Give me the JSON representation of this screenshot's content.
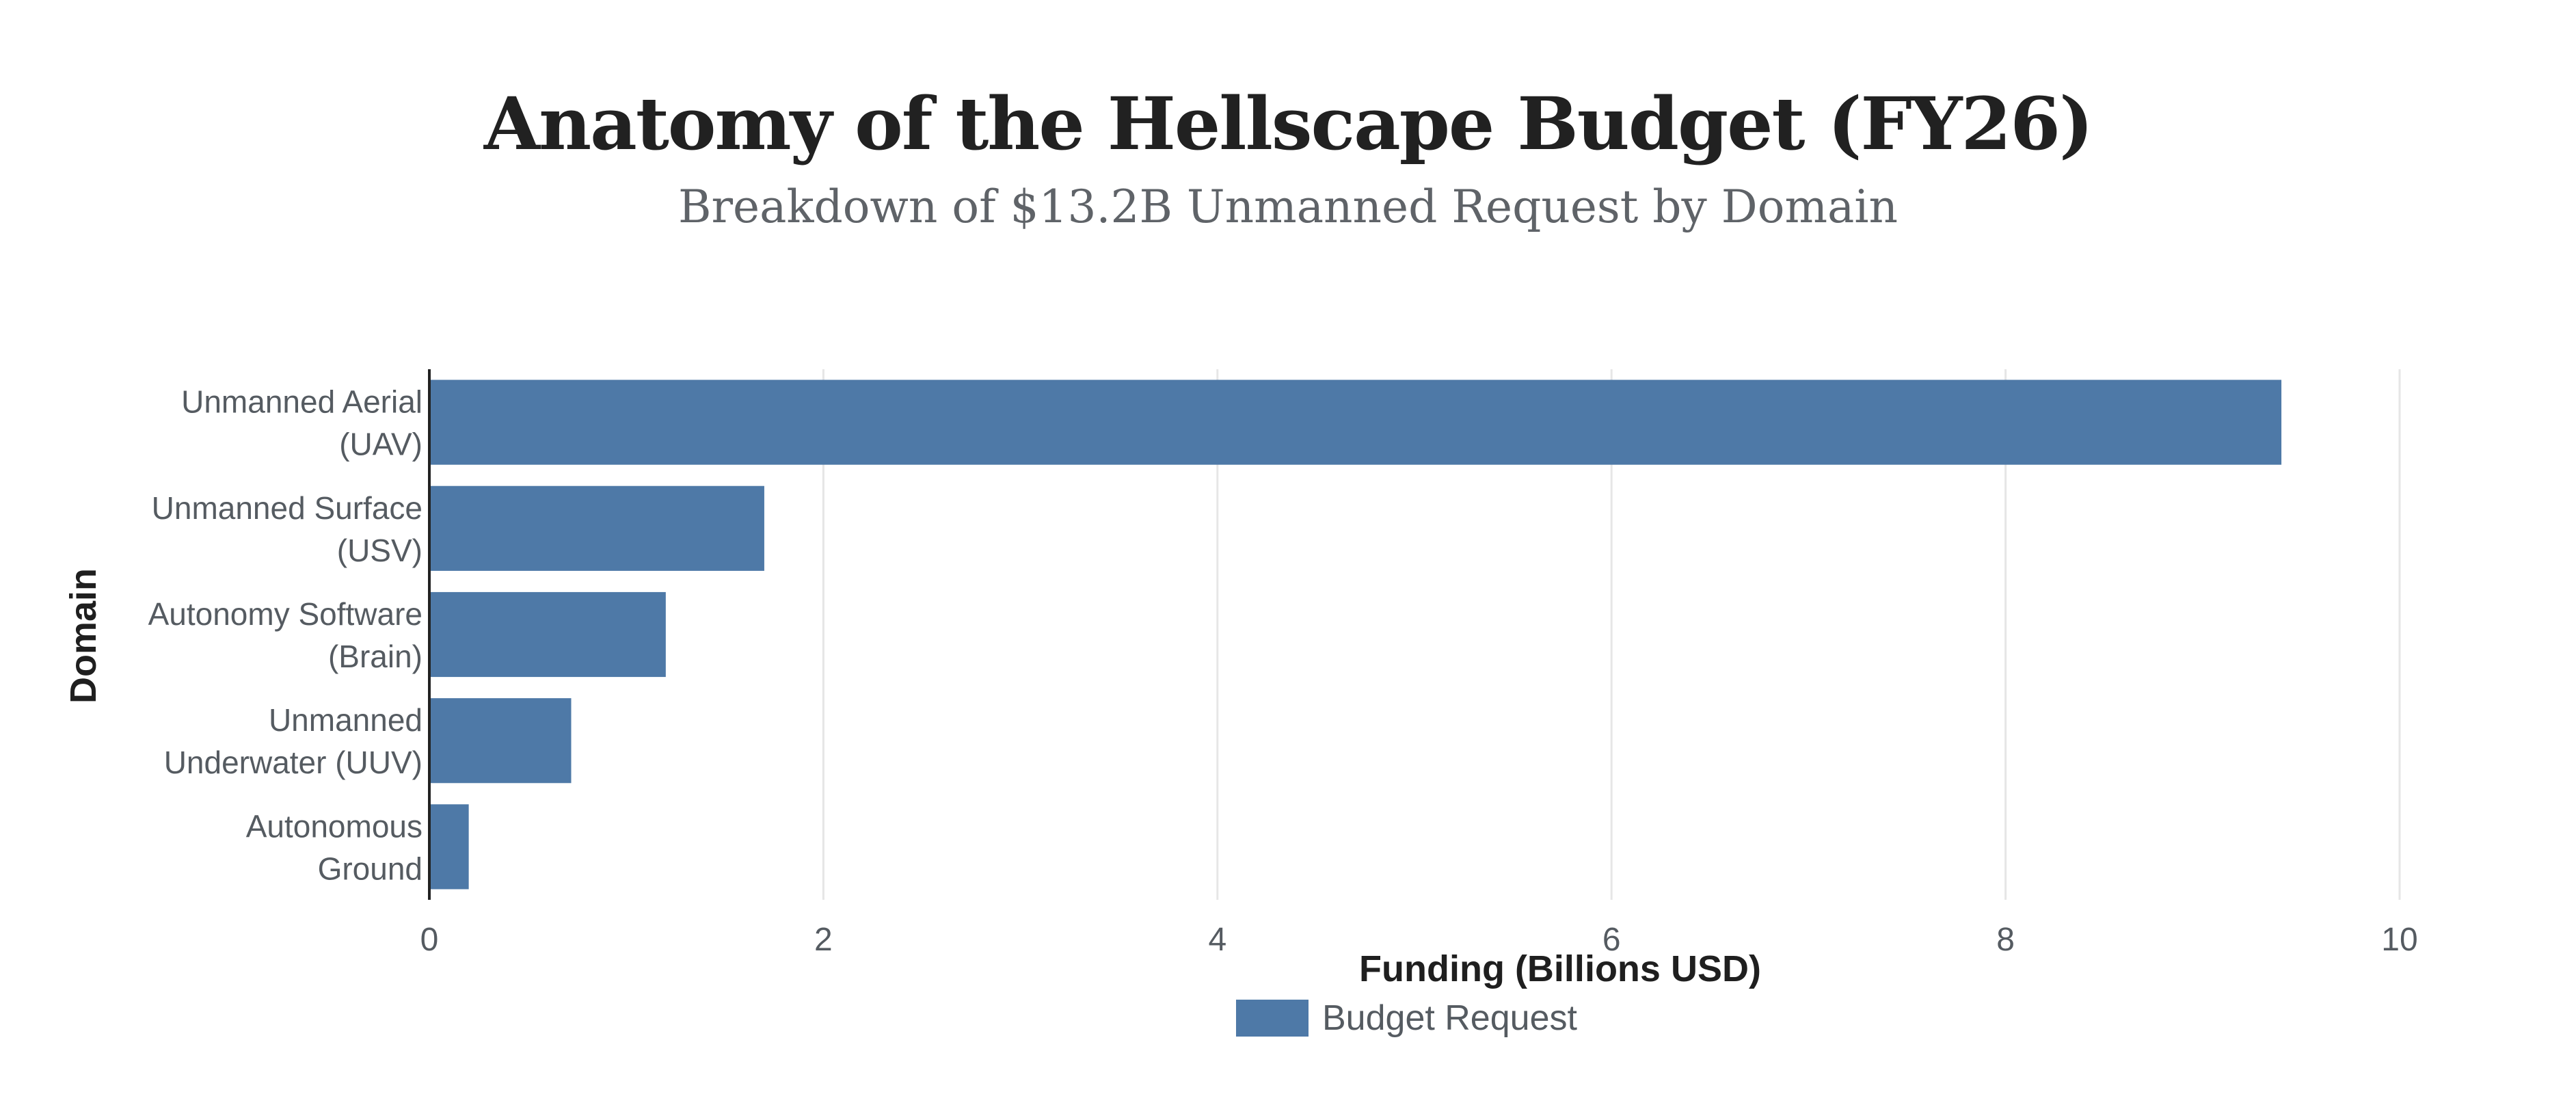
{
  "chart_data": {
    "type": "bar",
    "orientation": "horizontal",
    "title": "Anatomy of the Hellscape Budget (FY26)",
    "subtitle": "Breakdown of $13.2B Unmanned Request by Domain",
    "categories": [
      [
        "Unmanned Aerial",
        "(UAV)"
      ],
      [
        "Unmanned Surface",
        "(USV)"
      ],
      [
        "Autonomy Software",
        "(Brain)"
      ],
      [
        "Unmanned",
        "Underwater (UUV)"
      ],
      [
        "Autonomous",
        "Ground"
      ]
    ],
    "series": [
      {
        "name": "Budget Request",
        "values": [
          9.4,
          1.7,
          1.2,
          0.72,
          0.2
        ]
      }
    ],
    "xlabel": "Funding (Billions USD)",
    "ylabel": "Domain",
    "xlim": [
      0,
      10
    ],
    "xticks": [
      0,
      2,
      4,
      6,
      8,
      10
    ],
    "grid": "vertical",
    "legend_position": "bottom-center",
    "bar_color": "#4e79a7"
  }
}
